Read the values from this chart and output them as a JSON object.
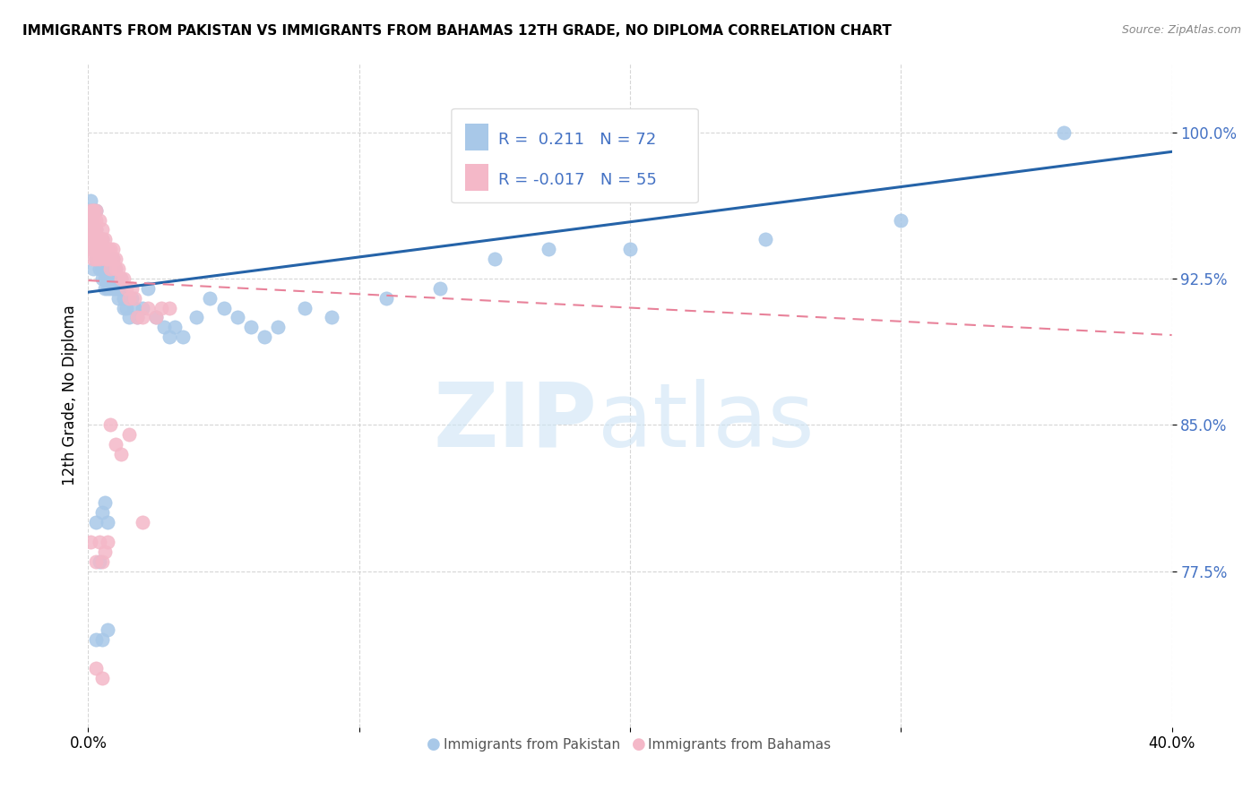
{
  "title": "IMMIGRANTS FROM PAKISTAN VS IMMIGRANTS FROM BAHAMAS 12TH GRADE, NO DIPLOMA CORRELATION CHART",
  "source": "Source: ZipAtlas.com",
  "ylabel": "12th Grade, No Diploma",
  "ytick_labels": [
    "100.0%",
    "92.5%",
    "85.0%",
    "77.5%"
  ],
  "ytick_values": [
    1.0,
    0.925,
    0.85,
    0.775
  ],
  "xmin": 0.0,
  "xmax": 0.4,
  "ymin": 0.695,
  "ymax": 1.035,
  "blue_color": "#a8c8e8",
  "pink_color": "#f4b8c8",
  "line_blue": "#2563a8",
  "line_pink": "#e8829a",
  "pakistan_x": [
    0.001,
    0.001,
    0.001,
    0.002,
    0.002,
    0.002,
    0.002,
    0.003,
    0.003,
    0.003,
    0.003,
    0.003,
    0.004,
    0.004,
    0.004,
    0.005,
    0.005,
    0.005,
    0.005,
    0.005,
    0.006,
    0.006,
    0.006,
    0.006,
    0.007,
    0.007,
    0.007,
    0.007,
    0.008,
    0.008,
    0.008,
    0.009,
    0.009,
    0.009,
    0.01,
    0.01,
    0.01,
    0.011,
    0.011,
    0.012,
    0.012,
    0.013,
    0.013,
    0.014,
    0.015,
    0.016,
    0.017,
    0.018,
    0.02,
    0.022,
    0.025,
    0.028,
    0.03,
    0.032,
    0.035,
    0.04,
    0.045,
    0.05,
    0.055,
    0.06,
    0.065,
    0.07,
    0.08,
    0.09,
    0.11,
    0.13,
    0.15,
    0.17,
    0.2,
    0.25,
    0.3,
    0.36
  ],
  "pakistan_y": [
    0.96,
    0.955,
    0.965,
    0.945,
    0.95,
    0.94,
    0.93,
    0.945,
    0.95,
    0.96,
    0.935,
    0.94,
    0.93,
    0.935,
    0.94,
    0.93,
    0.935,
    0.94,
    0.925,
    0.945,
    0.92,
    0.93,
    0.935,
    0.925,
    0.92,
    0.93,
    0.935,
    0.925,
    0.92,
    0.93,
    0.925,
    0.92,
    0.935,
    0.93,
    0.92,
    0.925,
    0.93,
    0.915,
    0.92,
    0.925,
    0.92,
    0.91,
    0.915,
    0.91,
    0.905,
    0.915,
    0.91,
    0.905,
    0.91,
    0.92,
    0.905,
    0.9,
    0.895,
    0.9,
    0.895,
    0.905,
    0.915,
    0.91,
    0.905,
    0.9,
    0.895,
    0.9,
    0.91,
    0.905,
    0.915,
    0.92,
    0.935,
    0.94,
    0.94,
    0.945,
    0.955,
    1.0
  ],
  "bahamas_x": [
    0.001,
    0.001,
    0.001,
    0.001,
    0.001,
    0.002,
    0.002,
    0.002,
    0.002,
    0.002,
    0.002,
    0.002,
    0.003,
    0.003,
    0.003,
    0.003,
    0.003,
    0.003,
    0.004,
    0.004,
    0.004,
    0.004,
    0.005,
    0.005,
    0.005,
    0.006,
    0.006,
    0.006,
    0.007,
    0.007,
    0.008,
    0.008,
    0.008,
    0.009,
    0.009,
    0.01,
    0.01,
    0.011,
    0.012,
    0.013,
    0.014,
    0.015,
    0.016,
    0.017,
    0.018,
    0.02,
    0.022,
    0.025,
    0.027,
    0.03,
    0.008,
    0.01,
    0.012,
    0.015,
    0.02
  ],
  "bahamas_y": [
    0.955,
    0.945,
    0.96,
    0.95,
    0.94,
    0.96,
    0.955,
    0.95,
    0.945,
    0.94,
    0.935,
    0.96,
    0.955,
    0.945,
    0.94,
    0.935,
    0.96,
    0.95,
    0.955,
    0.945,
    0.94,
    0.935,
    0.95,
    0.94,
    0.945,
    0.94,
    0.935,
    0.945,
    0.94,
    0.935,
    0.94,
    0.93,
    0.935,
    0.935,
    0.94,
    0.935,
    0.93,
    0.93,
    0.925,
    0.925,
    0.92,
    0.915,
    0.92,
    0.915,
    0.905,
    0.905,
    0.91,
    0.905,
    0.91,
    0.91,
    0.85,
    0.84,
    0.835,
    0.845,
    0.8
  ],
  "bahamas_low_x": [
    0.001,
    0.003,
    0.004,
    0.005,
    0.006,
    0.007,
    0.003,
    0.005
  ],
  "bahamas_low_y": [
    0.79,
    0.78,
    0.79,
    0.78,
    0.785,
    0.79,
    0.725,
    0.72
  ],
  "pak_low_x": [
    0.003,
    0.005,
    0.006,
    0.007,
    0.003,
    0.005,
    0.007,
    0.004
  ],
  "pak_low_y": [
    0.8,
    0.805,
    0.81,
    0.8,
    0.74,
    0.74,
    0.745,
    0.78
  ],
  "blue_line_x0": 0.0,
  "blue_line_y0": 0.918,
  "blue_line_x1": 0.4,
  "blue_line_y1": 0.99,
  "pink_line_x0": 0.0,
  "pink_line_y0": 0.924,
  "pink_line_x1": 0.4,
  "pink_line_y1": 0.896
}
